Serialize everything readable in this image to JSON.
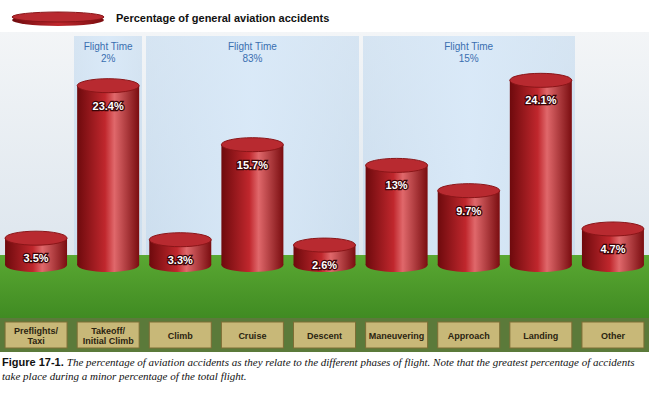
{
  "chart_data": {
    "type": "bar",
    "categories": [
      "Preflights/ Taxi",
      "Takeoff/ Initial Climb",
      "Climb",
      "Cruise",
      "Descent",
      "Maneuvering",
      "Approach",
      "Landing",
      "Other"
    ],
    "series": [
      {
        "name": "Percentage of general aviation accidents",
        "color": "#c0272d",
        "values": [
          3.5,
          23.4,
          3.3,
          15.7,
          2.6,
          13,
          9.7,
          24.1,
          4.7
        ],
        "value_labels": [
          "3.5%",
          "23.4%",
          "3.3%",
          "15.7%",
          "2.6%",
          "13%",
          "9.7%",
          "24.1%",
          "4.7%"
        ]
      }
    ],
    "data_labels": true,
    "tick_labels": "x",
    "legend": "top left",
    "annotations": [
      {
        "text": "Flight Time",
        "value": 2,
        "value_label": "2%",
        "categories": [
          "Takeoff/ Initial Climb"
        ]
      },
      {
        "text": "Flight Time",
        "value": 83,
        "value_label": "83%",
        "categories": [
          "Climb",
          "Cruise",
          "Descent"
        ]
      },
      {
        "text": "Flight Time",
        "value": 15,
        "value_label": "15%",
        "categories": [
          "Maneuvering",
          "Approach",
          "Landing"
        ]
      }
    ],
    "caption": {
      "label": "Figure 17-1.",
      "text": "The percentage of aviation accidents as they relate to the different phases of flight. Note that the greatest percentage of accidents take place during a minor percentage of the total flight."
    }
  }
}
